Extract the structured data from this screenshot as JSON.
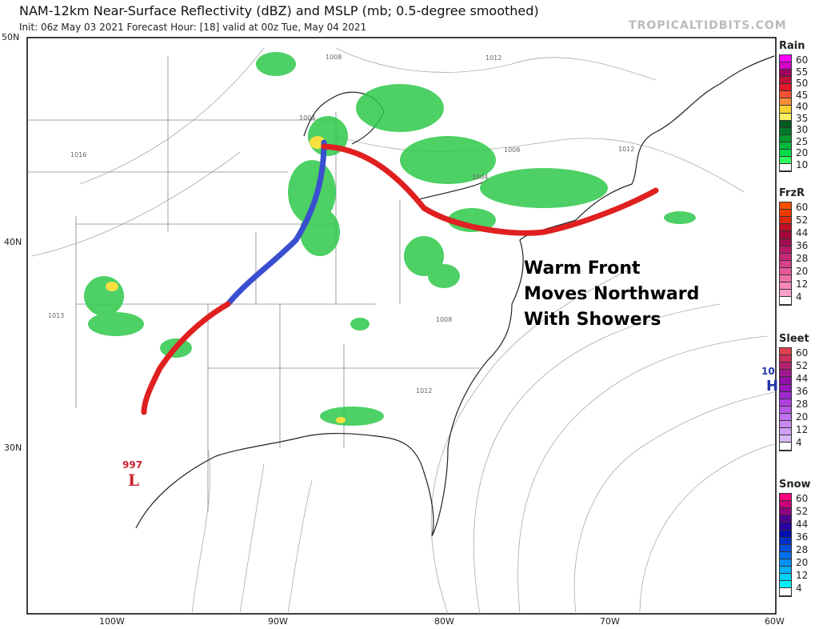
{
  "header": {
    "title": "NAM-12km Near-Surface Reflectivity (dBZ) and MSLP (mb; 0.5-degree smoothed)",
    "subtitle": "Init: 06z May 03 2021   Forecast Hour: [18]   valid at 00z Tue, May 04 2021",
    "watermark": "TROPICALTIDBITS.COM"
  },
  "axes": {
    "lat_labels": [
      "50N",
      "40N",
      "30N"
    ],
    "lon_labels": [
      "100W",
      "90W",
      "80W",
      "70W",
      "60W"
    ]
  },
  "annotation": {
    "lines": [
      "Warm Front",
      "Moves Northward",
      "With Showers"
    ]
  },
  "pressure_labels": [
    "1008",
    "1012",
    "1004",
    "1016",
    "1008",
    "1004",
    "1012",
    "1013",
    "1008",
    "1012"
  ],
  "low": {
    "value": "997",
    "symbol": "L",
    "color": "#cc2233"
  },
  "high": {
    "value": "10",
    "symbol": "H",
    "color": "#2233aa"
  },
  "fronts": {
    "warm_color": "#e02020",
    "cold_color": "#3a4fd0"
  },
  "legends": [
    {
      "name": "Rain",
      "labels": [
        "60",
        "55",
        "50",
        "45",
        "40",
        "35",
        "30",
        "25",
        "20",
        "10"
      ],
      "colors": [
        "#ff00ff",
        "#d400c8",
        "#a00060",
        "#c0103a",
        "#e01828",
        "#f85030",
        "#f89038",
        "#f8d030",
        "#f8f060",
        "#005a1e",
        "#007a28",
        "#009a30",
        "#00b83a",
        "#00dc48",
        "#30ff60",
        "#ffffff"
      ]
    },
    {
      "name": "FrzR",
      "labels": [
        "60",
        "52",
        "44",
        "36",
        "28",
        "20",
        "12",
        "4"
      ],
      "colors": [
        "#f85000",
        "#f03a00",
        "#e02810",
        "#c01028",
        "#a00838",
        "#a01050",
        "#b81868",
        "#c82878",
        "#d84088",
        "#e85898",
        "#f070a8",
        "#f888b8",
        "#f8a0c8",
        "#ffffff"
      ]
    },
    {
      "name": "Sleet",
      "labels": [
        "60",
        "52",
        "44",
        "36",
        "28",
        "20",
        "12",
        "4"
      ],
      "colors": [
        "#e04050",
        "#d03060",
        "#b82070",
        "#a01890",
        "#9010a8",
        "#9818c0",
        "#a028d0",
        "#b040e0",
        "#b858e8",
        "#c070f0",
        "#c888f0",
        "#d0a0f8",
        "#d8b8f8",
        "#ffffff"
      ]
    },
    {
      "name": "Snow",
      "labels": [
        "60",
        "52",
        "44",
        "36",
        "28",
        "20",
        "12",
        "4"
      ],
      "colors": [
        "#ff0080",
        "#c8007a",
        "#900080",
        "#500090",
        "#2800a0",
        "#0010b0",
        "#0030c8",
        "#0050e0",
        "#0070f0",
        "#0090f8",
        "#00b0f8",
        "#00d0f8",
        "#00f0f8",
        "#ffffff"
      ]
    }
  ]
}
